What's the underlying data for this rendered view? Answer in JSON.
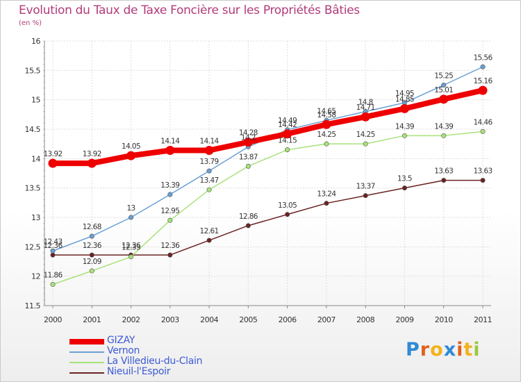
{
  "chart_data": {
    "type": "line",
    "title": "Evolution du Taux de Taxe Foncière sur les Propriétés Bâties",
    "subtitle": "(en %)",
    "xlabel": "",
    "ylabel": "",
    "x": [
      "2000",
      "2001",
      "2002",
      "2003",
      "2004",
      "2005",
      "2006",
      "2007",
      "2008",
      "2009",
      "2010",
      "2011"
    ],
    "ylim": [
      11.5,
      16
    ],
    "yticks": [
      "11.5",
      "12",
      "12.5",
      "13",
      "13.5",
      "14",
      "14.5",
      "15",
      "15.5",
      "16"
    ],
    "grid": true,
    "legend_position": "bottom-left",
    "series": [
      {
        "name": "GIZAY",
        "color": "#ee0000",
        "values": [
          13.92,
          13.92,
          14.05,
          14.14,
          14.14,
          14.28,
          14.42,
          14.58,
          14.71,
          14.85,
          15.01,
          15.16
        ],
        "labels": [
          "13.92",
          "13.92",
          "14.05",
          "14.14",
          "14.14",
          "14.28",
          "14.42",
          "14.58",
          "14.71",
          "14.85",
          "15.01",
          "15.16"
        ]
      },
      {
        "name": "Vernon",
        "color": "#6a9fd4",
        "values": [
          12.43,
          12.68,
          13,
          13.39,
          13.79,
          14.2,
          14.49,
          14.65,
          14.8,
          14.95,
          15.25,
          15.56
        ],
        "labels": [
          "12.43",
          "12.68",
          "13",
          "13.39",
          "13.79",
          "14.2",
          "14.49",
          "14.65",
          "14.8",
          "14.95",
          "15.25",
          "15.56"
        ]
      },
      {
        "name": "La Villedieu-du-Clain",
        "color": "#a8e27a",
        "values": [
          11.86,
          12.09,
          12.33,
          12.95,
          13.47,
          13.87,
          14.15,
          14.25,
          14.25,
          14.39,
          14.39,
          14.46
        ],
        "labels": [
          "11.86",
          "12.09",
          "12.33",
          "12.95",
          "13.47",
          "13.87",
          "14.15",
          "14.25",
          "14.25",
          "14.39",
          "14.39",
          "14.46"
        ]
      },
      {
        "name": "Nieuil-l'Espoir",
        "color": "#6b2222",
        "values": [
          12.36,
          12.36,
          12.36,
          12.36,
          12.61,
          12.86,
          13.05,
          13.24,
          13.37,
          13.5,
          13.63,
          13.63
        ],
        "labels": [
          "12.36",
          "12.36",
          "12.36",
          "12.36",
          "12.61",
          "12.86",
          "13.05",
          "13.24",
          "13.37",
          "13.5",
          "13.63",
          "13.63"
        ]
      }
    ]
  },
  "logo": {
    "text": "Proxiti",
    "colors": [
      "#2f8ad6",
      "#e0621a",
      "#f2b21b",
      "#2f8ad6",
      "#e0621a",
      "#f2b21b",
      "#9bc93d"
    ]
  }
}
